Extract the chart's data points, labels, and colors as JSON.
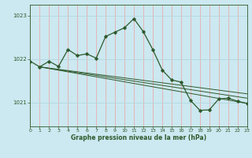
{
  "title": "Graphe pression niveau de la mer (hPa)",
  "bg_color": "#cce8f0",
  "grid_color_v": "#f0a0a0",
  "grid_color_h": "#b0d8e0",
  "line_color": "#2d5a2d",
  "xlim": [
    0,
    23
  ],
  "ylim": [
    1020.45,
    1023.25
  ],
  "yticks": [
    1021,
    1022,
    1023
  ],
  "xticks": [
    0,
    1,
    2,
    3,
    4,
    5,
    6,
    7,
    8,
    9,
    10,
    11,
    12,
    13,
    14,
    15,
    16,
    17,
    18,
    19,
    20,
    21,
    22,
    23
  ],
  "main_series": [
    [
      0,
      1021.95
    ],
    [
      1,
      1021.82
    ],
    [
      2,
      1021.95
    ],
    [
      3,
      1021.83
    ],
    [
      4,
      1022.22
    ],
    [
      5,
      1022.08
    ],
    [
      6,
      1022.12
    ],
    [
      7,
      1022.02
    ],
    [
      8,
      1022.52
    ],
    [
      9,
      1022.62
    ],
    [
      10,
      1022.72
    ],
    [
      11,
      1022.93
    ],
    [
      12,
      1022.63
    ],
    [
      13,
      1022.22
    ],
    [
      14,
      1021.75
    ],
    [
      15,
      1021.52
    ],
    [
      16,
      1021.47
    ],
    [
      17,
      1021.05
    ],
    [
      18,
      1020.82
    ],
    [
      19,
      1020.83
    ],
    [
      20,
      1021.08
    ],
    [
      21,
      1021.1
    ],
    [
      22,
      1021.03
    ],
    [
      23,
      1020.98
    ]
  ],
  "envelope_line1": [
    [
      1,
      1021.82
    ],
    [
      23,
      1020.98
    ]
  ],
  "envelope_line2": [
    [
      1,
      1021.82
    ],
    [
      23,
      1021.1
    ]
  ],
  "envelope_line3": [
    [
      1,
      1021.82
    ],
    [
      23,
      1021.2
    ]
  ]
}
